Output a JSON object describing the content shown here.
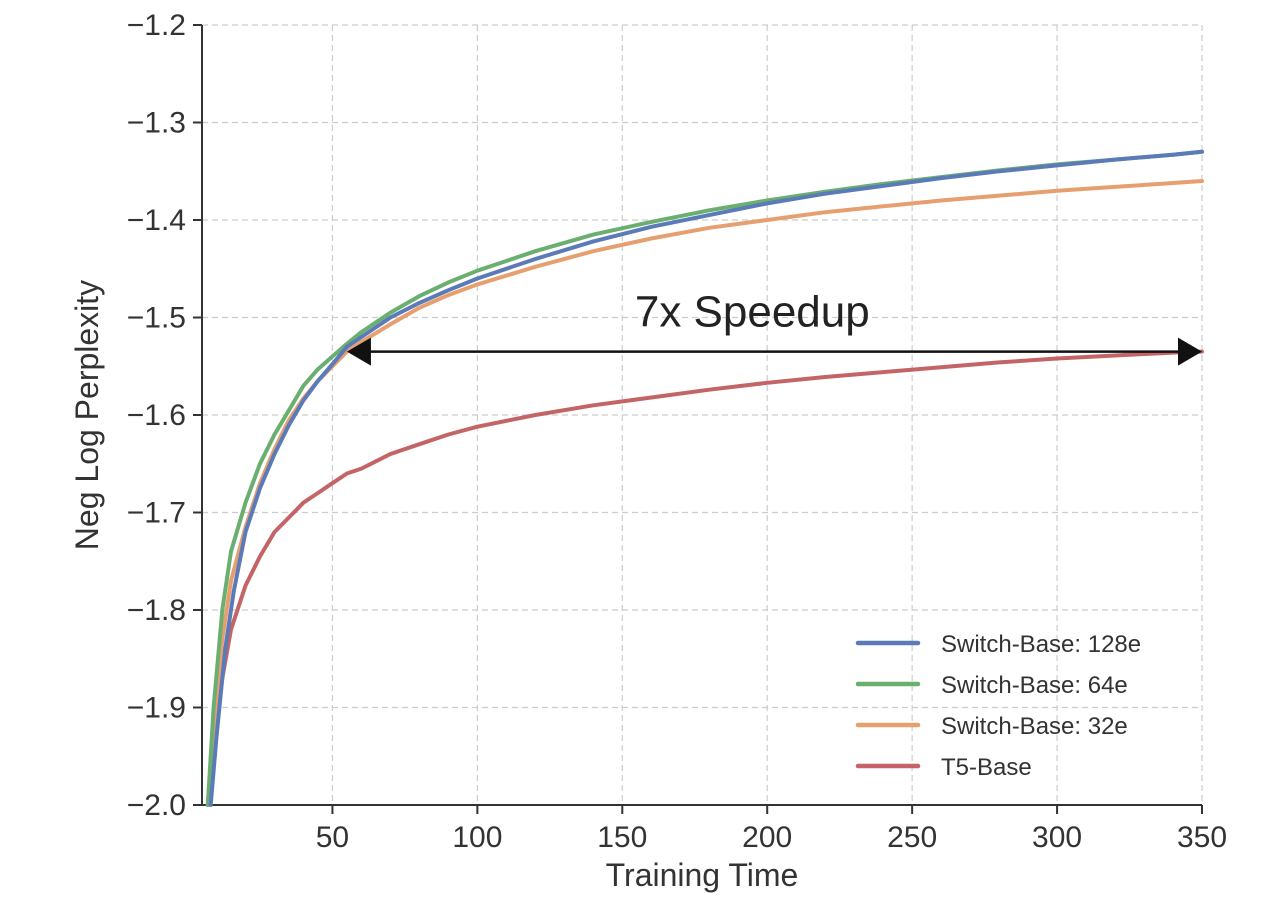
{
  "chart_data": {
    "type": "line",
    "title": "",
    "xlabel": "Training Time",
    "ylabel": "Neg Log Perplexity",
    "xlim": [
      5,
      350
    ],
    "ylim": [
      -2.0,
      -1.2
    ],
    "xticks": [
      50,
      100,
      150,
      200,
      250,
      300,
      350
    ],
    "yticks": [
      -2.0,
      -1.9,
      -1.8,
      -1.7,
      -1.6,
      -1.5,
      -1.4,
      -1.3,
      -1.2
    ],
    "ytick_labels": [
      "−2.0",
      "−1.9",
      "−1.8",
      "−1.7",
      "−1.6",
      "−1.5",
      "−1.4",
      "−1.3",
      "−1.2"
    ],
    "grid": true,
    "legend_position": "bottom-right",
    "series": [
      {
        "name": "Switch-Base: 128e",
        "color": "#5b7ab8",
        "x": [
          8,
          10,
          13,
          16,
          20,
          25,
          30,
          35,
          40,
          45,
          50,
          55,
          60,
          70,
          80,
          90,
          100,
          120,
          140,
          160,
          180,
          200,
          220,
          240,
          260,
          280,
          300,
          320,
          340,
          350
        ],
        "y": [
          -2.0,
          -1.93,
          -1.84,
          -1.78,
          -1.72,
          -1.675,
          -1.64,
          -1.61,
          -1.585,
          -1.565,
          -1.548,
          -1.53,
          -1.52,
          -1.5,
          -1.485,
          -1.472,
          -1.46,
          -1.44,
          -1.422,
          -1.407,
          -1.395,
          -1.383,
          -1.373,
          -1.365,
          -1.357,
          -1.35,
          -1.344,
          -1.338,
          -1.333,
          -1.33
        ]
      },
      {
        "name": "Switch-Base: 64e",
        "color": "#6aaf6f",
        "x": [
          7,
          9,
          12,
          15,
          20,
          25,
          30,
          35,
          40,
          45,
          50,
          55,
          60,
          70,
          80,
          90,
          100,
          120,
          140,
          160,
          180,
          200,
          220,
          240,
          260,
          280,
          300,
          320,
          340,
          350
        ],
        "y": [
          -2.0,
          -1.9,
          -1.8,
          -1.74,
          -1.69,
          -1.65,
          -1.62,
          -1.595,
          -1.57,
          -1.553,
          -1.54,
          -1.527,
          -1.515,
          -1.495,
          -1.478,
          -1.464,
          -1.452,
          -1.432,
          -1.415,
          -1.402,
          -1.39,
          -1.38,
          -1.371,
          -1.363,
          -1.356,
          -1.349,
          -1.343,
          -1.338,
          -1.333,
          -1.33
        ]
      },
      {
        "name": "Switch-Base: 32e",
        "color": "#e6a070",
        "x": [
          7,
          9,
          12,
          15,
          20,
          25,
          30,
          35,
          40,
          45,
          50,
          55,
          60,
          70,
          80,
          90,
          100,
          120,
          140,
          160,
          180,
          200,
          220,
          240,
          260,
          280,
          300,
          320,
          340,
          350
        ],
        "y": [
          -2.0,
          -1.92,
          -1.83,
          -1.77,
          -1.715,
          -1.67,
          -1.635,
          -1.605,
          -1.583,
          -1.565,
          -1.55,
          -1.535,
          -1.525,
          -1.507,
          -1.49,
          -1.477,
          -1.466,
          -1.448,
          -1.432,
          -1.419,
          -1.408,
          -1.4,
          -1.392,
          -1.386,
          -1.38,
          -1.375,
          -1.37,
          -1.366,
          -1.362,
          -1.36
        ]
      },
      {
        "name": "T5-Base",
        "color": "#c36566",
        "x": [
          7,
          9,
          12,
          15,
          20,
          25,
          30,
          35,
          40,
          45,
          50,
          55,
          60,
          70,
          80,
          90,
          100,
          120,
          140,
          160,
          180,
          200,
          220,
          240,
          260,
          280,
          300,
          320,
          340,
          350
        ],
        "y": [
          -2.0,
          -1.94,
          -1.87,
          -1.82,
          -1.775,
          -1.745,
          -1.72,
          -1.705,
          -1.69,
          -1.68,
          -1.67,
          -1.66,
          -1.655,
          -1.64,
          -1.63,
          -1.62,
          -1.612,
          -1.6,
          -1.59,
          -1.582,
          -1.574,
          -1.567,
          -1.561,
          -1.556,
          -1.551,
          -1.546,
          -1.542,
          -1.539,
          -1.536,
          -1.535
        ]
      }
    ],
    "annotations": [
      {
        "text": "7x Speedup",
        "arrow_from": [
          55,
          -1.535
        ],
        "arrow_to": [
          350,
          -1.535
        ],
        "text_anchor": [
          150,
          -1.495
        ],
        "color": "#111111"
      }
    ]
  }
}
